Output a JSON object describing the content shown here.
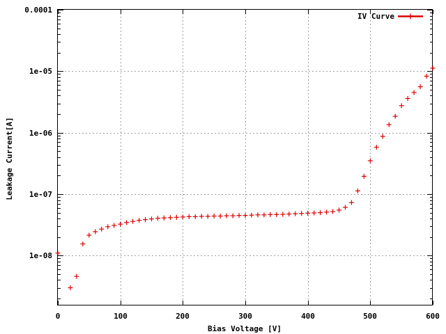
{
  "chart_data": {
    "type": "scatter",
    "xlabel": "Bias Voltage [V]",
    "ylabel": "Leakage Current[A]",
    "xlim": [
      0,
      600
    ],
    "ylim_log10": [
      -8.8,
      -4
    ],
    "y_scale": "log",
    "grid": true,
    "legend_position": "top-right",
    "x_ticks": [
      0,
      100,
      200,
      300,
      400,
      500,
      600
    ],
    "x_tick_labels": [
      "0",
      "100",
      "200",
      "300",
      "400",
      "500",
      "600"
    ],
    "y_ticks": [
      1e-08,
      1e-07,
      1e-06,
      1e-05,
      0.0001
    ],
    "y_tick_labels": [
      "1e-08",
      "1e-07",
      "1e-06",
      "1e-05",
      "0.0001"
    ],
    "series": [
      {
        "name": "IV Curve",
        "color": "#dd0000",
        "marker": "plus",
        "x": [
          0,
          20,
          30,
          40,
          50,
          60,
          70,
          80,
          90,
          100,
          110,
          120,
          130,
          140,
          150,
          160,
          170,
          180,
          190,
          200,
          210,
          220,
          230,
          240,
          250,
          260,
          270,
          280,
          290,
          300,
          310,
          320,
          330,
          340,
          350,
          360,
          370,
          380,
          390,
          400,
          410,
          420,
          430,
          440,
          450,
          460,
          470,
          480,
          490,
          500,
          510,
          520,
          530,
          540,
          550,
          560,
          570,
          580,
          590,
          600
        ],
        "y": [
          1.1e-08,
          3e-09,
          4.6e-09,
          1.55e-08,
          2.15e-08,
          2.45e-08,
          2.7e-08,
          2.95e-08,
          3.1e-08,
          3.25e-08,
          3.45e-08,
          3.6e-08,
          3.75e-08,
          3.85e-08,
          3.95e-08,
          4.05e-08,
          4.1e-08,
          4.15e-08,
          4.2e-08,
          4.25e-08,
          4.3e-08,
          4.3e-08,
          4.35e-08,
          4.35e-08,
          4.4e-08,
          4.4e-08,
          4.45e-08,
          4.45e-08,
          4.5e-08,
          4.5e-08,
          4.55e-08,
          4.6e-08,
          4.6e-08,
          4.65e-08,
          4.65e-08,
          4.7e-08,
          4.75e-08,
          4.8e-08,
          4.85e-08,
          4.9e-08,
          4.95e-08,
          5e-08,
          5.1e-08,
          5.2e-08,
          5.5e-08,
          6.1e-08,
          7.3e-08,
          1.13e-07,
          1.95e-07,
          3.5e-07,
          5.8e-07,
          8.7e-07,
          1.35e-06,
          1.85e-06,
          2.75e-06,
          3.6e-06,
          4.5e-06,
          5.6e-06,
          8.3e-06,
          1.12e-05
        ]
      }
    ]
  }
}
